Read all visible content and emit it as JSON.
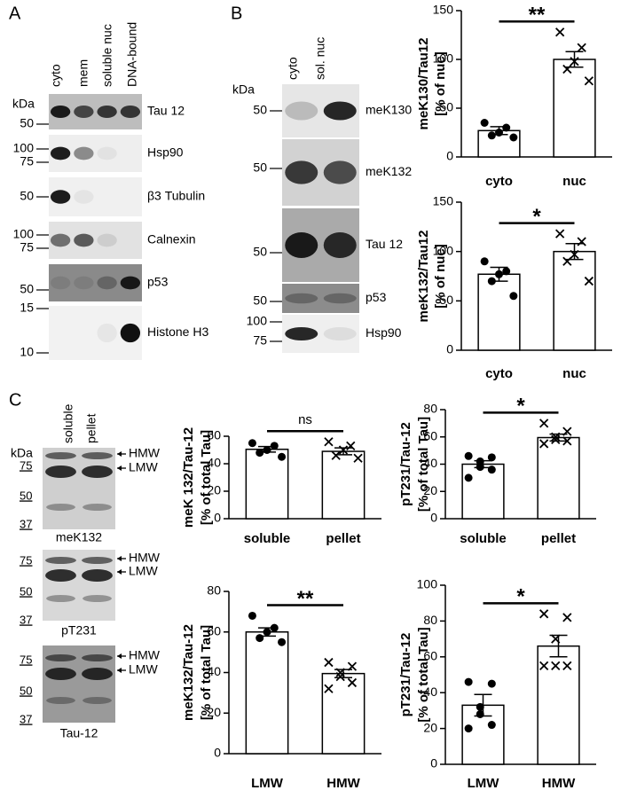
{
  "panels": {
    "A": {
      "letter": "A",
      "kda": "kDa",
      "lanes": [
        "cyto",
        "mem",
        "soluble nuc",
        "DNA-bound"
      ],
      "rows": [
        {
          "label": "Tau 12",
          "mw": [
            50
          ]
        },
        {
          "label": "Hsp90",
          "mw": [
            100,
            75
          ]
        },
        {
          "label": "β3 Tubulin",
          "mw": [
            50
          ]
        },
        {
          "label": "Calnexin",
          "mw": [
            100,
            75
          ]
        },
        {
          "label": "p53",
          "mw": [
            50
          ]
        },
        {
          "label": "Histone H3",
          "mw": [
            15,
            10
          ]
        }
      ]
    },
    "B": {
      "letter": "B",
      "kda": "kDa",
      "lanes": [
        "cyto",
        "sol. nuc"
      ],
      "rows": [
        {
          "label": "meK130",
          "mw": [
            50
          ]
        },
        {
          "label": "meK132",
          "mw": [
            50
          ]
        },
        {
          "label": "Tau 12",
          "mw": [
            50
          ]
        },
        {
          "label": "p53",
          "mw": [
            50
          ]
        },
        {
          "label": "Hsp90",
          "mw": [
            100,
            75
          ]
        }
      ]
    },
    "C": {
      "letter": "C",
      "kda": "kDa",
      "lanes": [
        "soluble",
        "pellet"
      ],
      "blots": [
        {
          "label": "meK132",
          "mw": [
            75,
            50,
            37
          ],
          "arrows": [
            "HMW",
            "LMW"
          ]
        },
        {
          "label": "pT231",
          "mw": [
            75,
            50,
            37
          ],
          "arrows": [
            "HMW",
            "LMW"
          ]
        },
        {
          "label": "Tau-12",
          "mw": [
            75,
            50,
            37
          ],
          "arrows": [
            "HMW",
            "LMW"
          ]
        }
      ]
    }
  },
  "chart_data": [
    {
      "type": "bar",
      "ylabel": [
        "meK130/Tau12",
        "[% of nuc]"
      ],
      "categories": [
        "cyto",
        "nuc"
      ],
      "values": [
        27,
        100
      ],
      "errors": [
        4,
        8
      ],
      "points": [
        [
          35,
          30,
          25,
          22,
          20
        ],
        [
          128,
          112,
          98,
          90,
          78
        ]
      ],
      "markers": [
        "circle",
        "cross"
      ],
      "annotation": "**",
      "ylim": [
        0,
        150
      ],
      "yticks": [
        0,
        50,
        100,
        150
      ],
      "color": "#ffffff"
    },
    {
      "type": "bar",
      "ylabel": [
        "meK132/Tau12",
        "[% of nuc]"
      ],
      "categories": [
        "cyto",
        "nuc"
      ],
      "values": [
        77,
        100
      ],
      "errors": [
        7,
        8
      ],
      "points": [
        [
          90,
          80,
          77,
          70,
          55
        ],
        [
          118,
          110,
          97,
          90,
          70
        ]
      ],
      "markers": [
        "circle",
        "cross"
      ],
      "annotation": "*",
      "ylim": [
        0,
        150
      ],
      "yticks": [
        0,
        50,
        100,
        150
      ],
      "color": "#ffffff"
    },
    {
      "type": "bar",
      "ylabel": [
        "meK 132/Tau-12",
        "[% of total  Tau]"
      ],
      "categories": [
        "soluble",
        "pellet"
      ],
      "values": [
        50.5,
        49
      ],
      "errors": [
        2,
        2.5
      ],
      "points": [
        [
          55,
          53,
          50,
          48,
          45
        ],
        [
          56,
          53,
          50,
          46,
          44
        ]
      ],
      "markers": [
        "circle",
        "cross"
      ],
      "annotation": "ns",
      "ylim": [
        0,
        60
      ],
      "yticks": [
        0,
        20,
        40,
        60
      ],
      "color": "#ffffff"
    },
    {
      "type": "bar",
      "ylabel": [
        "pT231/Tau-12",
        "[% of total  Tau]"
      ],
      "categories": [
        "soluble",
        "pellet"
      ],
      "values": [
        40,
        59.5
      ],
      "errors": [
        2.5,
        2.5
      ],
      "points": [
        [
          46,
          45,
          42,
          38,
          36,
          30
        ],
        [
          70,
          64,
          60,
          58,
          57,
          55
        ]
      ],
      "markers": [
        "circle",
        "cross"
      ],
      "annotation": "*",
      "ylim": [
        0,
        80
      ],
      "yticks": [
        0,
        20,
        40,
        60,
        80
      ],
      "color": "#ffffff"
    },
    {
      "type": "bar",
      "ylabel": [
        "meK132/Tau-12",
        "[% of total Tau]"
      ],
      "categories": [
        "LMW",
        "HMW"
      ],
      "values": [
        60,
        39.5
      ],
      "errors": [
        2,
        2
      ],
      "points": [
        [
          68,
          62,
          60,
          57,
          55
        ],
        [
          45,
          43,
          40,
          38,
          35,
          32
        ]
      ],
      "markers": [
        "circle",
        "cross"
      ],
      "annotation": "**",
      "ylim": [
        0,
        80
      ],
      "yticks": [
        0,
        20,
        40,
        60,
        80
      ],
      "color": "#ffffff"
    },
    {
      "type": "bar",
      "ylabel": [
        "pT231/Tau-12",
        "[% of total  Tau]"
      ],
      "categories": [
        "LMW",
        "HMW"
      ],
      "values": [
        33,
        66
      ],
      "errors": [
        6,
        6
      ],
      "points": [
        [
          46,
          45,
          32,
          28,
          22,
          20
        ],
        [
          84,
          82,
          70,
          55,
          55,
          55
        ]
      ],
      "markers": [
        "circle",
        "cross"
      ],
      "annotation": "*",
      "ylim": [
        0,
        100
      ],
      "yticks": [
        0,
        20,
        40,
        60,
        80,
        100
      ],
      "color": "#ffffff"
    }
  ]
}
